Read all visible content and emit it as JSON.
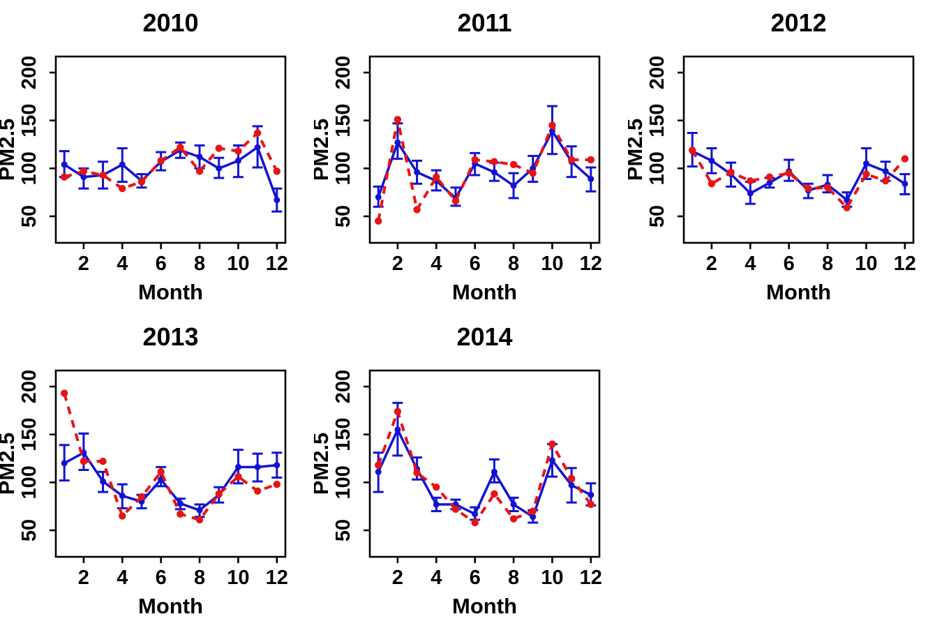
{
  "figure": {
    "description": "Monthly PM2.5 small-multiple line charts by year",
    "background": "#ffffff"
  },
  "colors": {
    "blue_series": "#1212d2",
    "red_series": "#e81414",
    "axis": "#000000",
    "text": "#000000"
  },
  "chart_data": [
    {
      "type": "line",
      "title": "2010",
      "xlabel": "Month",
      "ylabel": "PM2.5",
      "x": [
        1,
        2,
        3,
        4,
        5,
        6,
        7,
        8,
        9,
        10,
        11,
        12
      ],
      "xticks": [
        2,
        4,
        6,
        8,
        10,
        12
      ],
      "yticks": [
        50,
        100,
        150,
        200
      ],
      "xlim": [
        0.56,
        12.44
      ],
      "ylim": [
        22,
        218
      ],
      "grid": false,
      "legend": "none",
      "series": [
        {
          "name": "blue_series",
          "style": "solid-line-points-errorbars",
          "values": [
            104,
            91,
            93,
            104,
            87,
            107,
            119,
            112,
            100,
            108,
            122,
            67
          ],
          "lower": [
            91,
            79,
            79,
            86,
            80,
            98,
            111,
            100,
            90,
            91,
            101,
            55
          ],
          "upper": [
            118,
            100,
            107,
            121,
            94,
            117,
            127,
            124,
            111,
            124,
            144,
            79
          ]
        },
        {
          "name": "red_series",
          "style": "dashed-line-points",
          "values": [
            91,
            97,
            93,
            79,
            86,
            108,
            122,
            97,
            121,
            118,
            137,
            97
          ]
        }
      ]
    },
    {
      "type": "line",
      "title": "2011",
      "xlabel": "Month",
      "ylabel": "PM2.5",
      "x": [
        1,
        2,
        3,
        4,
        5,
        6,
        7,
        8,
        9,
        10,
        11,
        12
      ],
      "xticks": [
        2,
        4,
        6,
        8,
        10,
        12
      ],
      "yticks": [
        50,
        100,
        150,
        200
      ],
      "xlim": [
        0.56,
        12.44
      ],
      "ylim": [
        22,
        218
      ],
      "grid": false,
      "legend": "none",
      "series": [
        {
          "name": "blue_series",
          "style": "solid-line-points-errorbars",
          "values": [
            70,
            127,
            96,
            87,
            69,
            105,
            96,
            82,
            100,
            139,
            107,
            89
          ],
          "lower": [
            60,
            110,
            84,
            77,
            61,
            93,
            87,
            69,
            86,
            115,
            91,
            76
          ],
          "upper": [
            81,
            147,
            108,
            98,
            80,
            116,
            106,
            95,
            113,
            165,
            123,
            101
          ]
        },
        {
          "name": "red_series",
          "style": "dashed-line-points",
          "values": [
            45,
            151,
            57,
            91,
            66,
            109,
            107,
            104,
            95,
            145,
            109,
            109
          ]
        }
      ]
    },
    {
      "type": "line",
      "title": "2012",
      "xlabel": "Month",
      "ylabel": "PM2.5",
      "x": [
        1,
        2,
        3,
        4,
        5,
        6,
        7,
        8,
        9,
        10,
        11,
        12
      ],
      "xticks": [
        2,
        4,
        6,
        8,
        10,
        12
      ],
      "yticks": [
        50,
        100,
        150,
        200
      ],
      "xlim": [
        0.56,
        12.44
      ],
      "ylim": [
        22,
        218
      ],
      "grid": false,
      "legend": "none",
      "series": [
        {
          "name": "blue_series",
          "style": "solid-line-points-errorbars",
          "values": [
            118,
            108,
            94,
            74,
            85,
            97,
            77,
            83,
            67,
            105,
            97,
            84
          ],
          "lower": [
            102,
            95,
            81,
            63,
            80,
            87,
            69,
            75,
            60,
            89,
            87,
            73
          ],
          "upper": [
            137,
            121,
            106,
            86,
            90,
            109,
            84,
            93,
            75,
            121,
            107,
            94
          ]
        },
        {
          "name": "red_series",
          "style": "dashed-line-points",
          "values": [
            119,
            84,
            96,
            87,
            91,
            95,
            79,
            80,
            59,
            94,
            87,
            110
          ]
        }
      ]
    },
    {
      "type": "line",
      "title": "2013",
      "xlabel": "Month",
      "ylabel": "PM2.5",
      "x": [
        1,
        2,
        3,
        4,
        5,
        6,
        7,
        8,
        9,
        10,
        11,
        12
      ],
      "xticks": [
        2,
        4,
        6,
        8,
        10,
        12
      ],
      "yticks": [
        50,
        100,
        150,
        200
      ],
      "xlim": [
        0.56,
        12.44
      ],
      "ylim": [
        22,
        218
      ],
      "grid": false,
      "legend": "none",
      "series": [
        {
          "name": "blue_series",
          "style": "solid-line-points-errorbars",
          "values": [
            120,
            131,
            101,
            86,
            80,
            103,
            78,
            71,
            87,
            116,
            116,
            118
          ],
          "lower": [
            102,
            113,
            90,
            73,
            73,
            96,
            72,
            64,
            79,
            99,
            101,
            105
          ],
          "upper": [
            139,
            151,
            111,
            98,
            87,
            116,
            83,
            77,
            95,
            134,
            130,
            131
          ]
        },
        {
          "name": "red_series",
          "style": "dashed-line-points",
          "values": [
            193,
            122,
            122,
            65,
            85,
            111,
            67,
            61,
            88,
            106,
            91,
            98
          ]
        }
      ]
    },
    {
      "type": "line",
      "title": "2014",
      "xlabel": "Month",
      "ylabel": "PM2.5",
      "x": [
        1,
        2,
        3,
        4,
        5,
        6,
        7,
        8,
        9,
        10,
        11,
        12
      ],
      "xticks": [
        2,
        4,
        6,
        8,
        10,
        12
      ],
      "yticks": [
        50,
        100,
        150,
        200
      ],
      "xlim": [
        0.56,
        12.44
      ],
      "ylim": [
        22,
        218
      ],
      "grid": false,
      "legend": "none",
      "series": [
        {
          "name": "blue_series",
          "style": "solid-line-points-errorbars",
          "values": [
            111,
            155,
            114,
            77,
            77,
            67,
            111,
            77,
            64,
            123,
            97,
            87
          ],
          "lower": [
            90,
            128,
            103,
            70,
            72,
            61,
            100,
            70,
            58,
            106,
            79,
            76
          ],
          "upper": [
            131,
            183,
            126,
            84,
            82,
            74,
            124,
            84,
            71,
            140,
            115,
            99
          ]
        },
        {
          "name": "red_series",
          "style": "dashed-line-points",
          "values": [
            118,
            174,
            110,
            95,
            72,
            58,
            88,
            62,
            70,
            140,
            104,
            77
          ]
        }
      ]
    }
  ]
}
